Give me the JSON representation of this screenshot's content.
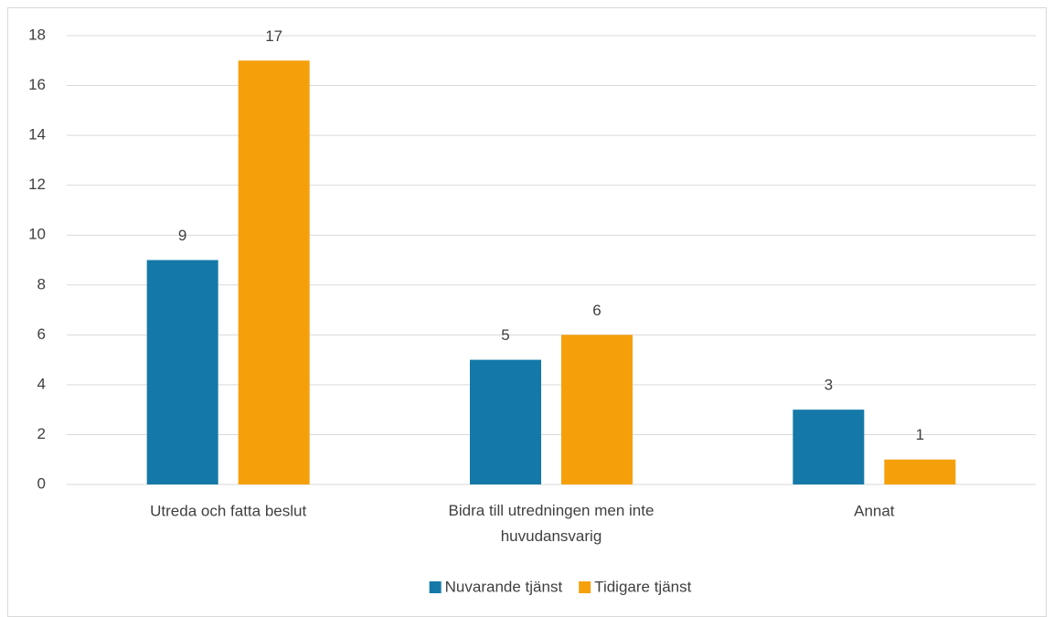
{
  "chart_data": {
    "type": "bar",
    "categories": [
      "Utreda och fatta beslut",
      "Bidra till utredningen men inte huvudansvarig",
      "Annat"
    ],
    "series": [
      {
        "name": "Nuvarande tjänst",
        "color": "#1479a8",
        "values": [
          9,
          5,
          3
        ]
      },
      {
        "name": "Tidigare tjänst",
        "color": "#f5a00b",
        "values": [
          17,
          6,
          1
        ]
      }
    ],
    "ylim": [
      0,
      18
    ],
    "yticks": [
      0,
      2,
      4,
      6,
      8,
      10,
      12,
      14,
      16,
      18
    ],
    "grid": true,
    "legend": "bottom"
  }
}
